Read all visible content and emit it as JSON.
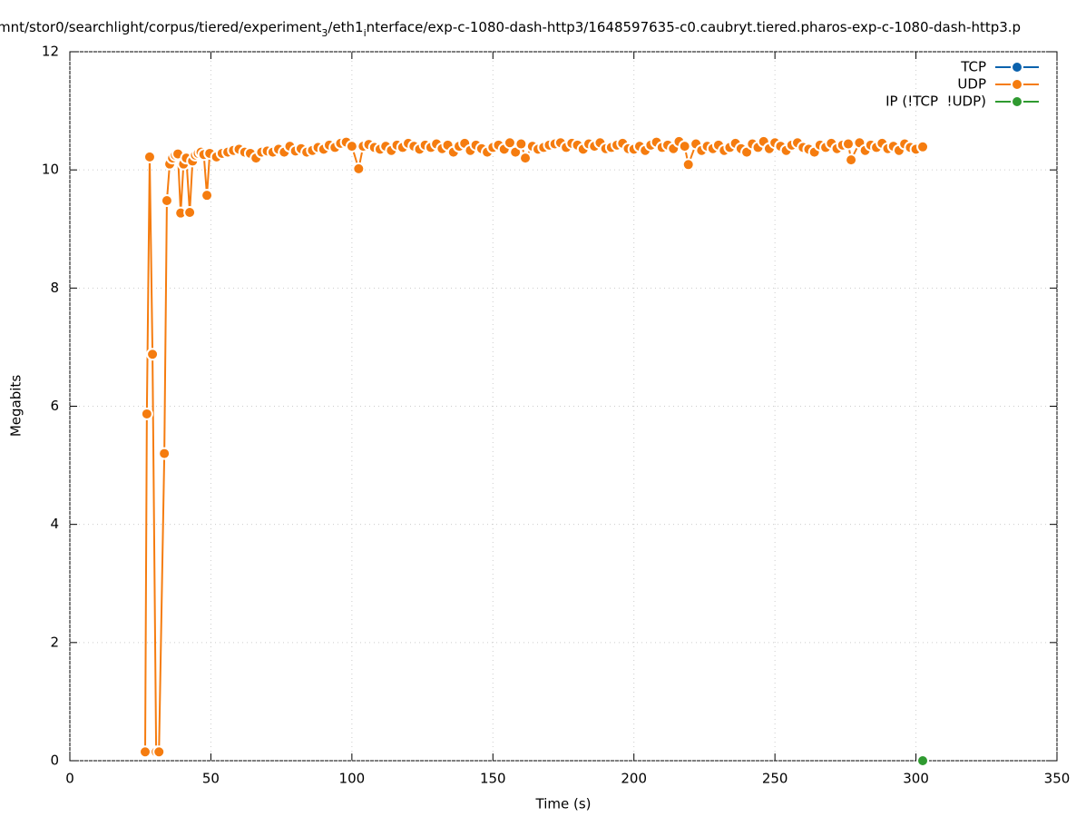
{
  "chart_data": {
    "type": "line",
    "title": [
      {
        "text": "mnt/stor0/searchlight/corpus/tiered/experiment",
        "sub": false
      },
      {
        "text": "3",
        "sub": true
      },
      {
        "text": "/eth1",
        "sub": false
      },
      {
        "text": "i",
        "sub": true
      },
      {
        "text": "nterface/exp-c-1080-dash-http3/1648597635-c0.caubryt.tiered.pharos-exp-c-1080-dash-http3.p",
        "sub": false
      }
    ],
    "x_label": "Time (s)",
    "y_label": "Megabits",
    "xlim": [
      0,
      350
    ],
    "xticks": [
      0,
      50,
      100,
      150,
      200,
      250,
      300,
      350
    ],
    "ylim": [
      0,
      12
    ],
    "yticks": [
      0,
      2,
      4,
      6,
      8,
      10,
      12
    ],
    "grid": true,
    "legend": "top-right",
    "series": [
      {
        "name": "TCP",
        "color": "#0b62ad",
        "x": [],
        "values": []
      },
      {
        "name": "UDP",
        "color": "#f57c0f",
        "x": [
          26.7,
          27.3,
          28.3,
          29.3,
          30.6,
          31.6,
          33.5,
          34.4,
          35.4,
          36.4,
          37.4,
          38.3,
          39.3,
          40.3,
          41.3,
          42.5,
          43.5,
          44.5,
          45.5,
          46.5,
          47.5,
          48.6,
          49.6,
          52,
          54,
          56,
          58,
          60,
          62,
          64,
          66,
          68,
          70,
          72,
          74,
          76,
          78,
          80,
          82,
          84,
          86,
          88,
          90,
          92,
          94,
          96,
          98,
          100,
          102.4,
          104,
          106,
          108,
          110,
          112,
          114,
          116,
          118,
          120,
          122,
          124,
          126,
          128,
          130,
          132,
          134,
          136,
          138,
          140,
          142,
          144,
          146,
          148,
          150,
          152,
          154,
          156,
          158,
          160,
          161.5,
          164,
          166,
          168,
          170,
          172,
          174,
          176,
          178,
          180,
          182,
          184,
          186,
          188,
          190,
          192,
          194,
          196,
          198,
          200,
          202,
          204,
          206,
          208,
          210,
          212,
          214,
          216,
          218,
          219.3,
          222,
          224,
          226,
          228,
          230,
          232,
          234,
          236,
          238,
          240,
          242,
          244,
          246,
          248,
          250,
          252,
          254,
          256,
          258,
          260,
          262,
          264,
          266,
          268,
          270,
          272,
          274,
          276,
          277,
          280,
          282,
          284,
          286,
          288,
          290,
          292,
          294,
          296,
          298,
          300,
          302.4
        ],
        "values": [
          0.15,
          5.87,
          10.22,
          6.88,
          0.15,
          0.15,
          5.2,
          9.48,
          10.1,
          10.2,
          10.25,
          10.27,
          9.27,
          10.1,
          10.2,
          9.28,
          10.15,
          10.25,
          10.28,
          10.3,
          10.26,
          9.57,
          10.28,
          10.22,
          10.28,
          10.3,
          10.33,
          10.35,
          10.3,
          10.28,
          10.2,
          10.3,
          10.32,
          10.3,
          10.35,
          10.3,
          10.4,
          10.32,
          10.36,
          10.3,
          10.33,
          10.38,
          10.35,
          10.42,
          10.38,
          10.45,
          10.47,
          10.4,
          10.02,
          10.4,
          10.43,
          10.38,
          10.35,
          10.4,
          10.33,
          10.42,
          10.38,
          10.45,
          10.4,
          10.35,
          10.42,
          10.38,
          10.44,
          10.36,
          10.42,
          10.3,
          10.4,
          10.45,
          10.33,
          10.42,
          10.36,
          10.3,
          10.38,
          10.42,
          10.35,
          10.46,
          10.3,
          10.44,
          10.2,
          10.4,
          10.35,
          10.38,
          10.42,
          10.44,
          10.46,
          10.38,
          10.45,
          10.42,
          10.35,
          10.44,
          10.4,
          10.46,
          10.36,
          10.38,
          10.42,
          10.45,
          10.36,
          10.35,
          10.4,
          10.33,
          10.42,
          10.47,
          10.38,
          10.42,
          10.36,
          10.48,
          10.4,
          10.09,
          10.44,
          10.33,
          10.4,
          10.36,
          10.42,
          10.33,
          10.38,
          10.45,
          10.36,
          10.3,
          10.44,
          10.38,
          10.48,
          10.36,
          10.46,
          10.4,
          10.33,
          10.42,
          10.46,
          10.38,
          10.35,
          10.3,
          10.42,
          10.38,
          10.45,
          10.36,
          10.42,
          10.44,
          10.17,
          10.46,
          10.33,
          10.42,
          10.38,
          10.45,
          10.36,
          10.4,
          10.33,
          10.44,
          10.38,
          10.35,
          10.39
        ]
      },
      {
        "name": "IP (!TCP  !UDP)",
        "color": "#2f9a30",
        "x": [
          302.4
        ],
        "values": [
          0
        ]
      }
    ]
  }
}
